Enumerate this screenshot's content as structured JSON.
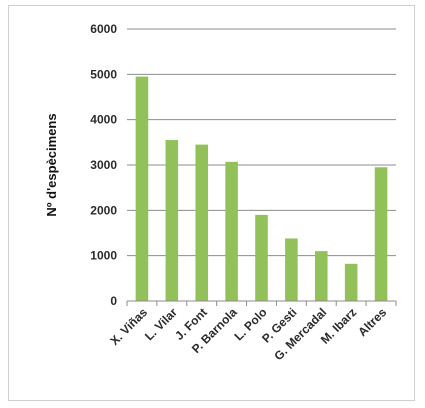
{
  "chart_data": {
    "type": "bar",
    "title": "",
    "xlabel": "",
    "ylabel": "Nº d'espècimens",
    "ylim": [
      0,
      6000
    ],
    "yticks": [
      "0",
      "1000",
      "2000",
      "3000",
      "4000",
      "5000",
      "6000"
    ],
    "grid": true,
    "legend": "none",
    "bar_color": "#92c15a",
    "grid_color": "#8c8c8c",
    "categories": [
      "X. Viñas",
      "L. Vilar",
      "J. Font",
      "P. Barnola",
      "L. Polo",
      "P. Gesti",
      "G. Mercadal",
      "M. Ibarz",
      "Altres"
    ],
    "values": [
      4950,
      3550,
      3450,
      3070,
      1900,
      1380,
      1100,
      820,
      2950
    ]
  }
}
